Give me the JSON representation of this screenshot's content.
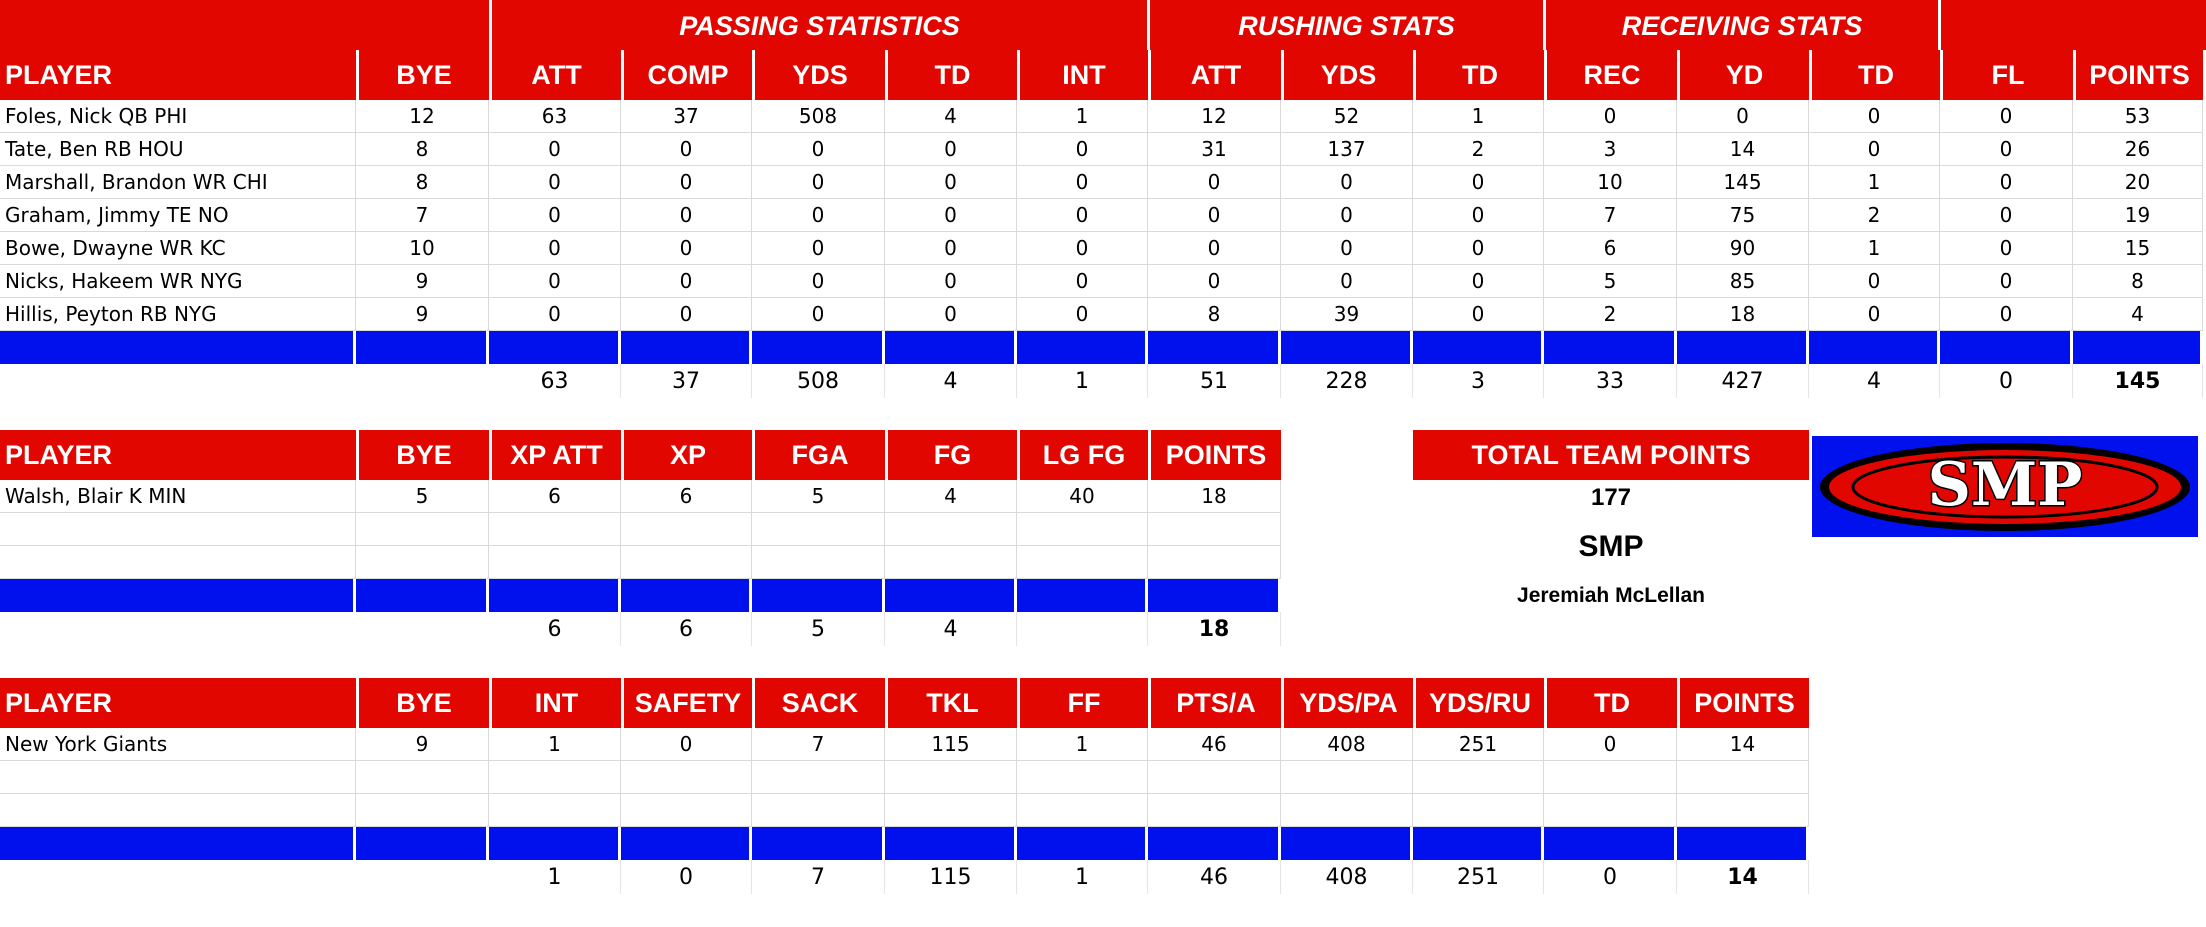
{
  "offense": {
    "groups": [
      "PASSING STATISTICS",
      "RUSHING STATS",
      "RECEIVING STATS"
    ],
    "headers": [
      "PLAYER",
      "BYE",
      "ATT",
      "COMP",
      "YDS",
      "TD",
      "INT",
      "ATT",
      "YDS",
      "TD",
      "REC",
      "YD",
      "TD",
      "FL",
      "POINTS"
    ],
    "rows": [
      [
        "Foles, Nick QB PHI",
        "12",
        "63",
        "37",
        "508",
        "4",
        "1",
        "12",
        "52",
        "1",
        "0",
        "0",
        "0",
        "0",
        "53"
      ],
      [
        "Tate, Ben RB HOU",
        "8",
        "0",
        "0",
        "0",
        "0",
        "0",
        "31",
        "137",
        "2",
        "3",
        "14",
        "0",
        "0",
        "26"
      ],
      [
        "Marshall, Brandon WR CHI",
        "8",
        "0",
        "0",
        "0",
        "0",
        "0",
        "0",
        "0",
        "0",
        "10",
        "145",
        "1",
        "0",
        "20"
      ],
      [
        "Graham, Jimmy TE NO",
        "7",
        "0",
        "0",
        "0",
        "0",
        "0",
        "0",
        "0",
        "0",
        "7",
        "75",
        "2",
        "0",
        "19"
      ],
      [
        "Bowe, Dwayne WR KC",
        "10",
        "0",
        "0",
        "0",
        "0",
        "0",
        "0",
        "0",
        "0",
        "6",
        "90",
        "1",
        "0",
        "15"
      ],
      [
        "Nicks, Hakeem WR NYG",
        "9",
        "0",
        "0",
        "0",
        "0",
        "0",
        "0",
        "0",
        "0",
        "5",
        "85",
        "0",
        "0",
        "8"
      ],
      [
        "Hillis, Peyton RB NYG",
        "9",
        "0",
        "0",
        "0",
        "0",
        "0",
        "8",
        "39",
        "0",
        "2",
        "18",
        "0",
        "0",
        "4"
      ]
    ],
    "totals": [
      "",
      "",
      "63",
      "37",
      "508",
      "4",
      "1",
      "51",
      "228",
      "3",
      "33",
      "427",
      "4",
      "0",
      "145"
    ]
  },
  "kicker": {
    "headers": [
      "PLAYER",
      "BYE",
      "XP ATT",
      "XP",
      "FGA",
      "FG",
      "LG FG",
      "POINTS"
    ],
    "rows": [
      [
        "Walsh, Blair K MIN",
        "5",
        "6",
        "6",
        "5",
        "4",
        "40",
        "18"
      ],
      [
        "",
        "",
        "",
        "",
        "",
        "",
        "",
        ""
      ],
      [
        "",
        "",
        "",
        "",
        "",
        "",
        "",
        ""
      ]
    ],
    "totals": [
      "",
      "",
      "6",
      "6",
      "5",
      "4",
      "",
      "18"
    ]
  },
  "defense": {
    "headers": [
      "PLAYER",
      "BYE",
      "INT",
      "SAFETY",
      "SACK",
      "TKL",
      "FF",
      "PTS/A",
      "YDS/PA",
      "YDS/RU",
      "TD",
      "POINTS"
    ],
    "rows": [
      [
        "New York Giants",
        "9",
        "1",
        "0",
        "7",
        "115",
        "1",
        "46",
        "408",
        "251",
        "0",
        "14"
      ],
      [
        "",
        "",
        "",
        "",
        "",
        "",
        "",
        "",
        "",
        "",
        "",
        ""
      ],
      [
        "",
        "",
        "",
        "",
        "",
        "",
        "",
        "",
        "",
        "",
        "",
        ""
      ]
    ],
    "totals": [
      "",
      "",
      "1",
      "0",
      "7",
      "115",
      "1",
      "46",
      "408",
      "251",
      "0",
      "14"
    ]
  },
  "team": {
    "header": "TOTAL TEAM POINTS",
    "points": "177",
    "name": "SMP",
    "owner": "Jeremiah McLellan"
  },
  "logo": {
    "text": "SMP",
    "colors": {
      "blue": "#0011ee",
      "red": "#e10600",
      "black": "#000000"
    }
  },
  "colors": {
    "header_red": "#e10600",
    "separator_blue": "#0011ee"
  }
}
